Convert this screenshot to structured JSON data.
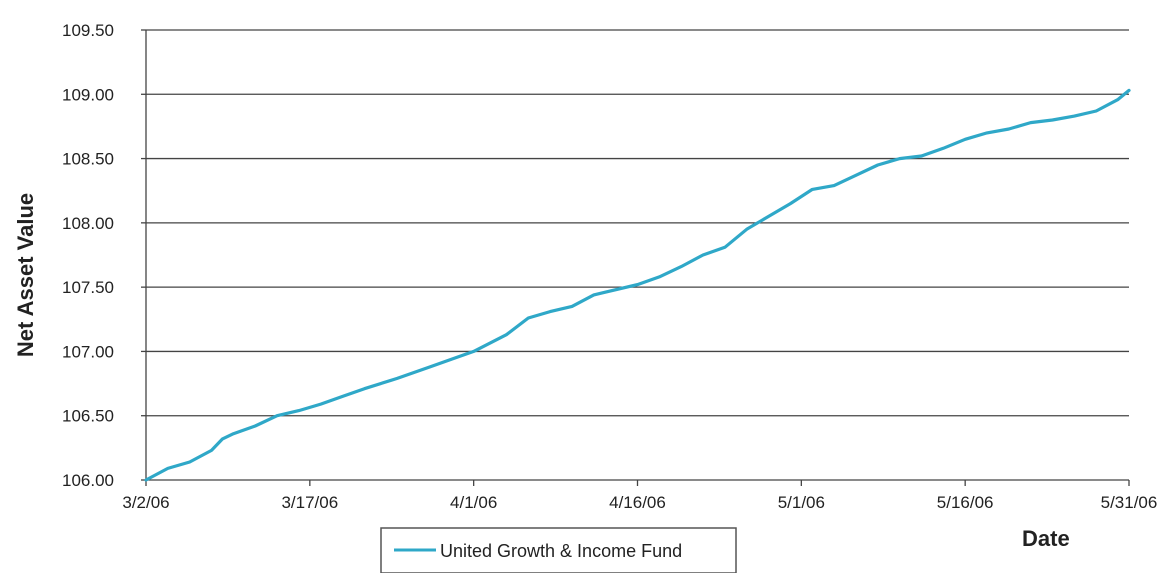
{
  "chart_data": {
    "type": "line",
    "ylabel": "Net Asset Value",
    "xlabel": "Date",
    "ylim": [
      106.0,
      109.5
    ],
    "xlim": [
      "3/2/06",
      "5/31/06"
    ],
    "grid": "horizontal",
    "legend_position": "bottom",
    "y_ticks": [
      "106.00",
      "106.50",
      "107.00",
      "107.50",
      "108.00",
      "108.50",
      "109.00",
      "109.50"
    ],
    "x_ticks": [
      "3/2/06",
      "3/17/06",
      "4/1/06",
      "4/16/06",
      "5/1/06",
      "5/16/06",
      "5/31/06"
    ],
    "series": [
      {
        "name": "United Growth & Income Fund",
        "color": "#2fa8c8",
        "x": [
          "3/2/06",
          "3/4/06",
          "3/6/06",
          "3/8/06",
          "3/9/06",
          "3/10/06",
          "3/12/06",
          "3/14/06",
          "3/16/06",
          "3/18/06",
          "3/20/06",
          "3/22/06",
          "3/25/06",
          "3/28/06",
          "3/30/06",
          "4/1/06",
          "4/4/06",
          "4/6/06",
          "4/8/06",
          "4/10/06",
          "4/12/06",
          "4/13/06",
          "4/16/06",
          "4/18/06",
          "4/20/06",
          "4/22/06",
          "4/24/06",
          "4/26/06",
          "4/28/06",
          "4/30/06",
          "5/2/06",
          "5/4/06",
          "5/6/06",
          "5/8/06",
          "5/10/06",
          "5/12/06",
          "5/14/06",
          "5/16/06",
          "5/18/06",
          "5/20/06",
          "5/22/06",
          "5/24/06",
          "5/26/06",
          "5/28/06",
          "5/30/06",
          "5/31/06"
        ],
        "values": [
          106.0,
          106.09,
          106.14,
          106.23,
          106.32,
          106.36,
          106.42,
          106.5,
          106.54,
          106.59,
          106.65,
          106.71,
          106.79,
          106.88,
          106.94,
          107.0,
          107.13,
          107.26,
          107.31,
          107.35,
          107.44,
          107.46,
          107.52,
          107.58,
          107.66,
          107.75,
          107.81,
          107.95,
          108.05,
          108.15,
          108.26,
          108.29,
          108.37,
          108.45,
          108.5,
          108.52,
          108.58,
          108.65,
          108.7,
          108.73,
          108.78,
          108.8,
          108.83,
          108.87,
          108.96,
          109.03
        ]
      }
    ]
  }
}
